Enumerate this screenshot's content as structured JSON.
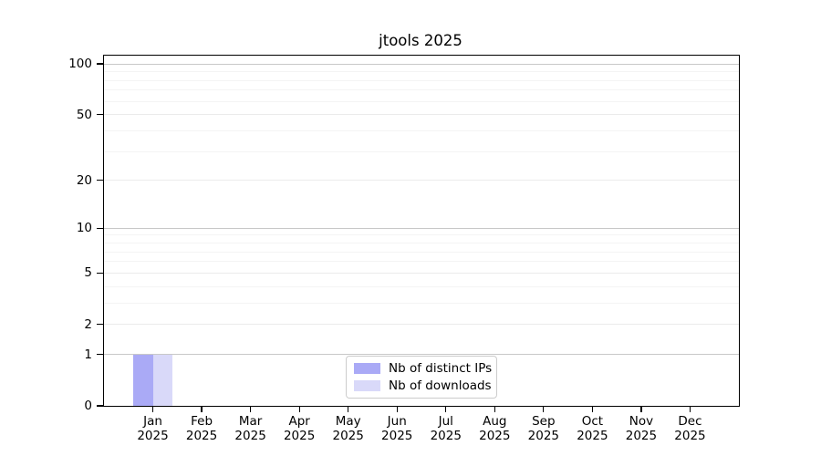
{
  "chart_data": {
    "type": "bar",
    "title": "jtools 2025",
    "categories": [
      "Jan",
      "Feb",
      "Mar",
      "Apr",
      "May",
      "Jun",
      "Jul",
      "Aug",
      "Sep",
      "Oct",
      "Nov",
      "Dec"
    ],
    "category_year": "2025",
    "series": [
      {
        "name": "Nb of distinct IPs",
        "color": "#aaaaf6",
        "values": [
          1,
          0,
          0,
          0,
          0,
          0,
          0,
          0,
          0,
          0,
          0,
          0
        ]
      },
      {
        "name": "Nb of downloads",
        "color": "#d9d9f9",
        "values": [
          1,
          0,
          0,
          0,
          0,
          0,
          0,
          0,
          0,
          0,
          0,
          0
        ]
      }
    ],
    "y_axis": {
      "scale": "log1p",
      "ticks": [
        0,
        1,
        2,
        5,
        10,
        20,
        50,
        100
      ],
      "emphasized_gridlines": [
        1,
        10,
        100
      ],
      "mid_gridlines": [
        2,
        5,
        20,
        50
      ],
      "minor_gridlines": [
        3,
        4,
        6,
        7,
        8,
        9,
        30,
        40,
        60,
        70,
        80,
        90
      ],
      "range": [
        0,
        112
      ]
    },
    "x_axis": {
      "ticks_per_month": true
    },
    "legend": {
      "position": "lower center"
    },
    "grid": true,
    "background": "#ffffff",
    "axis_color": "#000000",
    "grid_colors": {
      "major": "#c8c8c8",
      "mid": "#ebebeb",
      "minor": "#f4f4f4"
    }
  }
}
